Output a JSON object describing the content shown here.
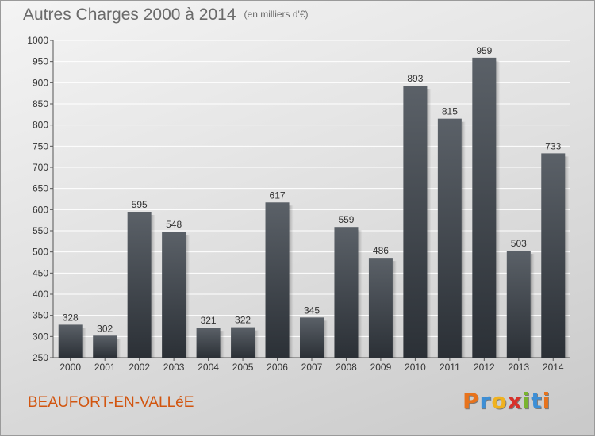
{
  "header": {
    "title": "Autres Charges 2000 à 2014",
    "subtitle": "(en milliers d'€)"
  },
  "footer": {
    "commune": "BEAUFORT-EN-VALLéE",
    "brand": "Proxiti"
  },
  "colors": {
    "bar_top": "#5b6168",
    "bar_bottom": "#2b3036",
    "commune": "#d2550f",
    "brand_letters": [
      "#e8731c",
      "#3d8fd6",
      "#f0b21f",
      "#d8312a",
      "#7ab42f",
      "#3d8fd6",
      "#e8731c"
    ]
  },
  "chart_data": {
    "type": "bar",
    "title": "Autres Charges 2000 à 2014",
    "subtitle": "(en milliers d'€)",
    "categories": [
      "2000",
      "2001",
      "2002",
      "2003",
      "2004",
      "2005",
      "2006",
      "2007",
      "2008",
      "2009",
      "2010",
      "2011",
      "2012",
      "2013",
      "2014"
    ],
    "values": [
      328,
      302,
      595,
      548,
      321,
      322,
      617,
      345,
      559,
      486,
      893,
      815,
      959,
      503,
      733
    ],
    "ylim": [
      250,
      1000
    ],
    "yticks": [
      250,
      300,
      350,
      400,
      450,
      500,
      550,
      600,
      650,
      700,
      750,
      800,
      850,
      900,
      950,
      1000
    ],
    "grid": true,
    "data_labels": true
  }
}
